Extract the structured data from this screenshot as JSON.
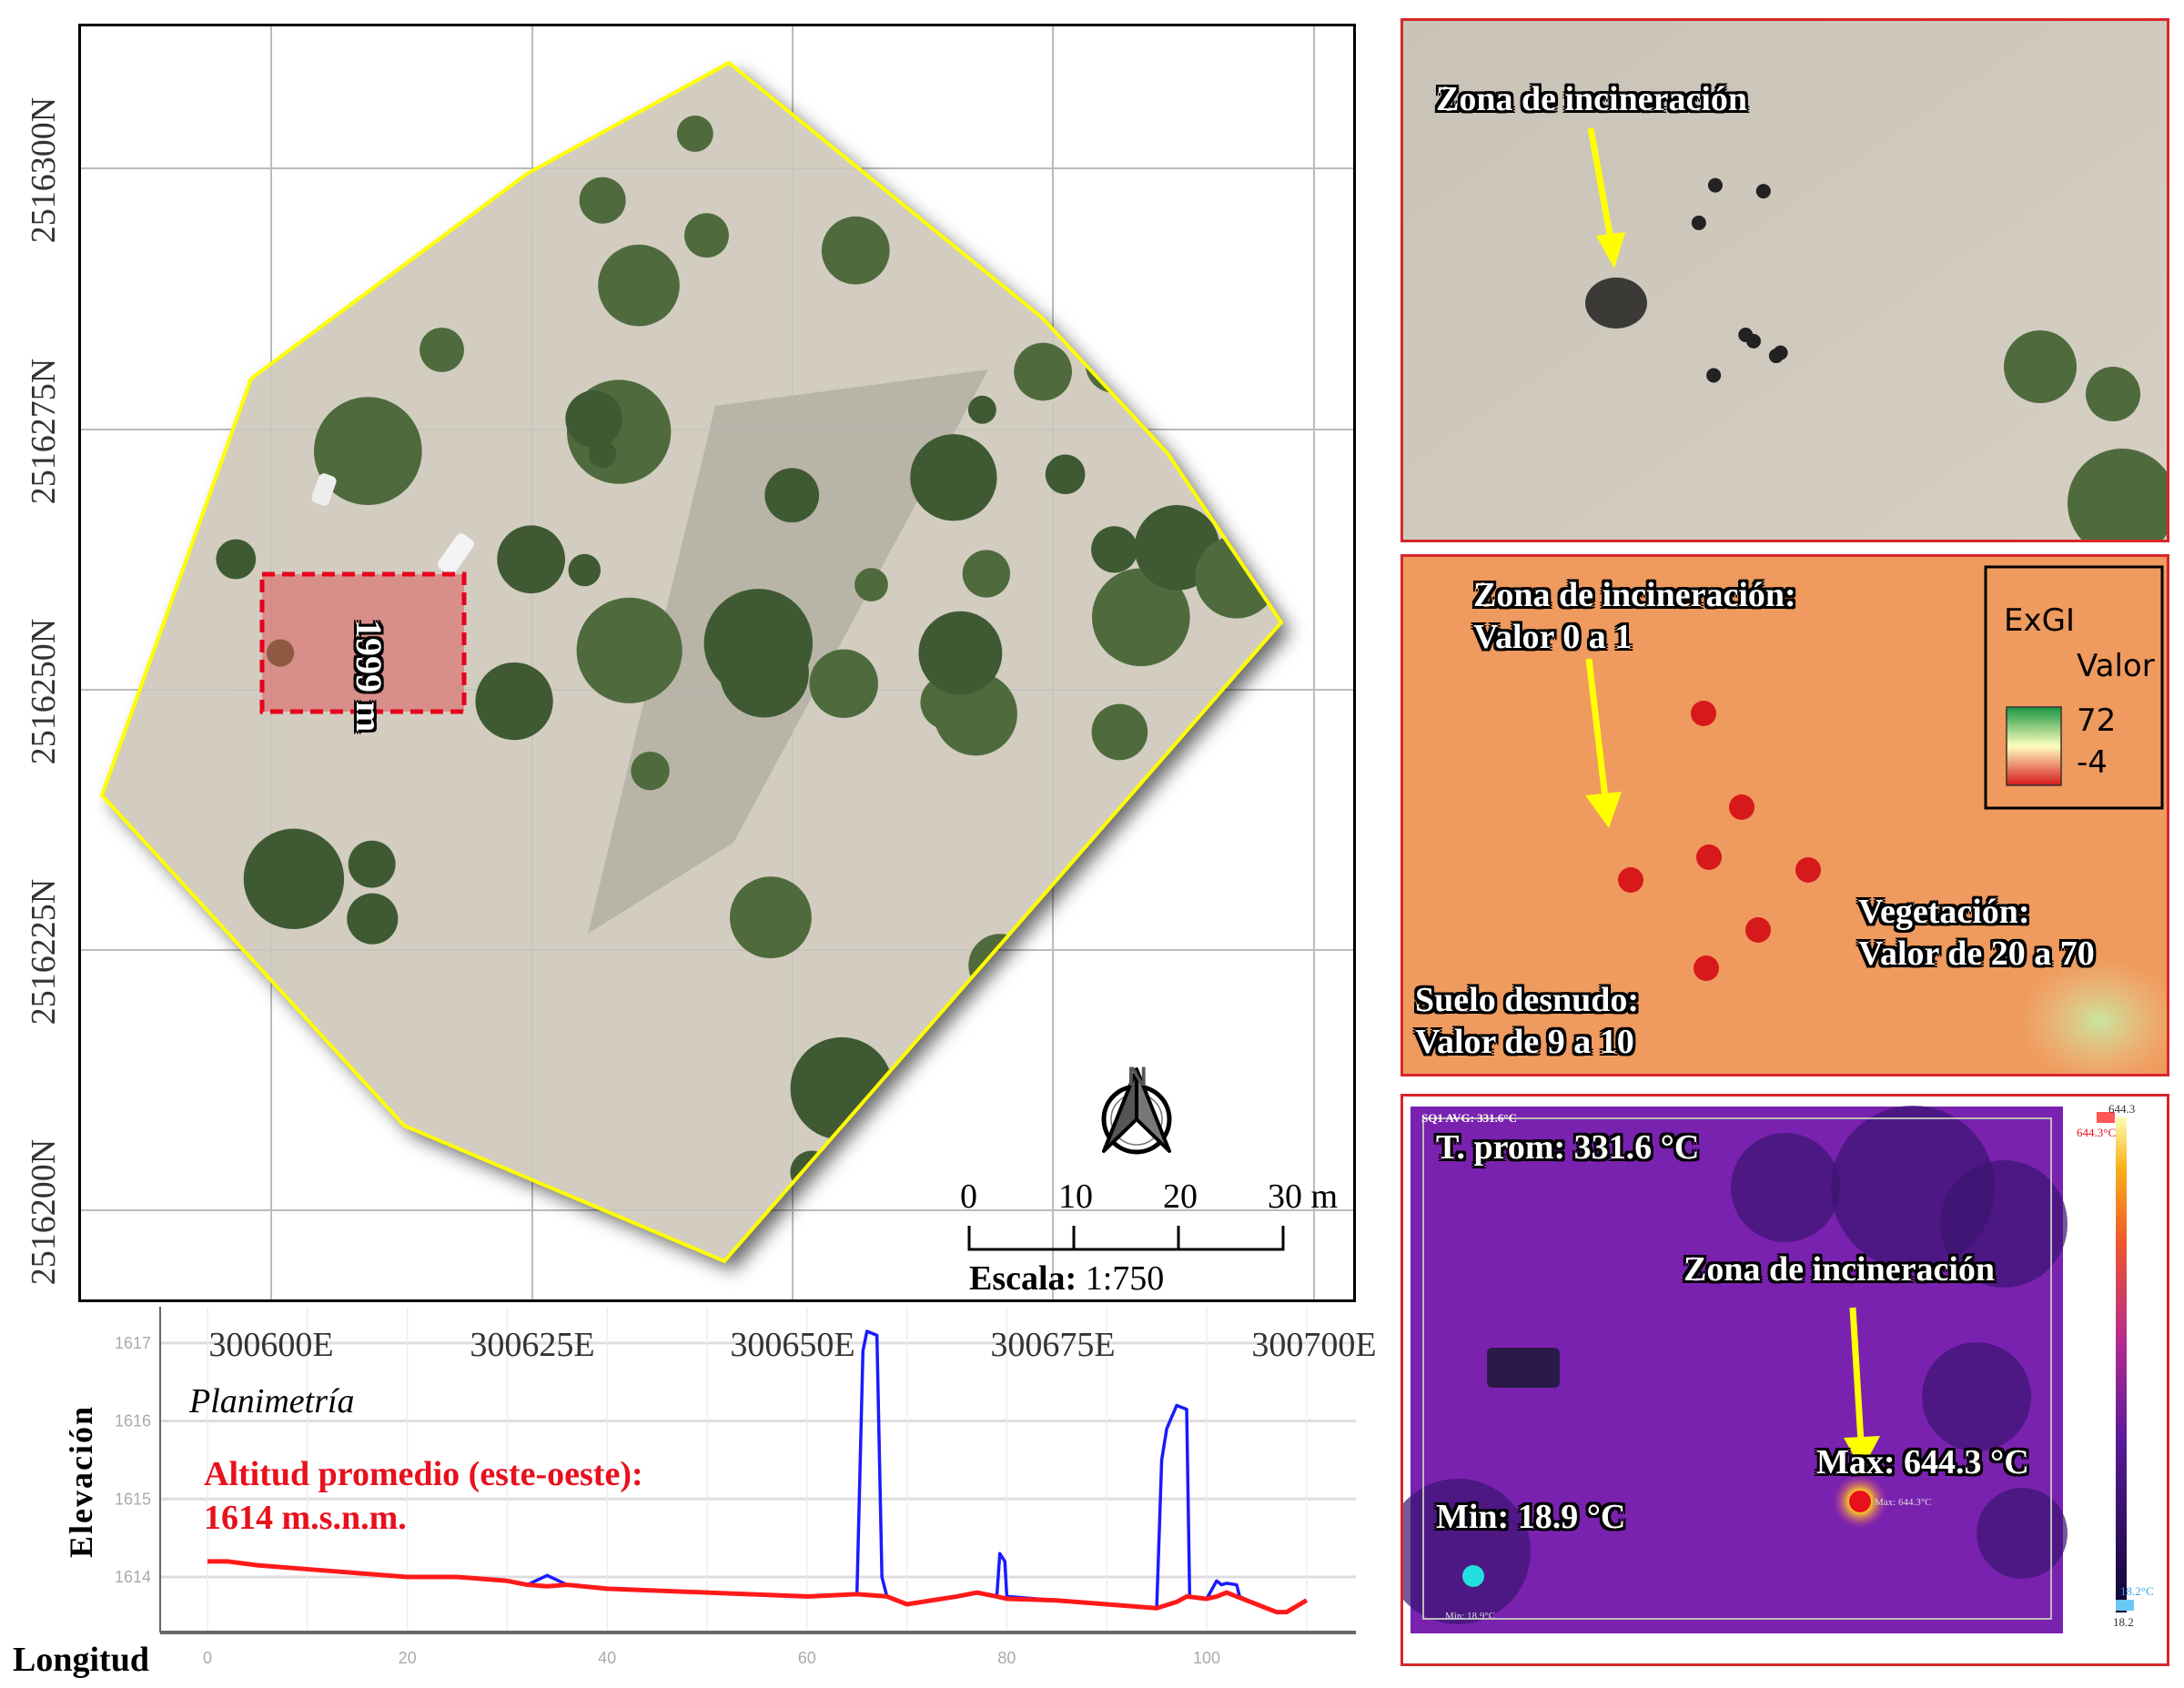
{
  "map": {
    "northing_labels": [
      "2516300N",
      "2516275N",
      "2516250N",
      "2516225N",
      "2516200N"
    ],
    "easting_labels": [
      "300600E",
      "300625E",
      "300650E",
      "300675E",
      "300700E"
    ],
    "boundary_color": "#ffff00",
    "selection_label": "1999 m",
    "north_label": "N",
    "scale": {
      "ticks": [
        "0",
        "10",
        "20",
        "30 m"
      ],
      "label": "Escala:",
      "value": "1:750"
    }
  },
  "panel_rgb": {
    "annotation": "Zona de incineración"
  },
  "panel_exgi": {
    "burn_title": "Zona de incineración:",
    "burn_value": "Valor 0 a 1",
    "veg_title": "Vegetación:",
    "veg_value": "Valor de 20 a 70",
    "soil_title": "Suelo desnudo:",
    "soil_value": "Valor de 9 a 10",
    "legend": {
      "title": "ExGI",
      "subtitle": "Valor",
      "max": "72",
      "min": "-4"
    }
  },
  "panel_thermal": {
    "sq_avg": "SQ1 AVG: 331.6°C",
    "avg": "T. prom: 331.6 °C",
    "annotation": "Zona de incineración",
    "max": "Max: 644.3 °C",
    "max_small": "Max: 644.3°C",
    "min": "Min: 18.9 °C",
    "min_small": "Min: 18.9°C",
    "colorbar": {
      "top": "644.3",
      "top_marker": "644.3°C",
      "bottom_marker": "18.2°C",
      "bottom": "18.2"
    }
  },
  "elevation_chart": {
    "ylabel": "Elevación",
    "xlabel": "Longitud",
    "title": "Planimetría",
    "annotation_line1": "Altitud promedio (este-oeste):",
    "annotation_line2": "1614 m.s.n.m."
  },
  "chart_data": {
    "type": "line",
    "xlabel": "Longitud",
    "ylabel": "Elevación",
    "xlim": [
      -2,
      115
    ],
    "ylim": [
      1613.3,
      1617.47
    ],
    "x_ticks": [
      "0",
      "20",
      "40",
      "60",
      "80",
      "100"
    ],
    "y_ticks": [
      "1614",
      "1615",
      "1616",
      "1617"
    ],
    "grid": true,
    "series": [
      {
        "color": "#1a1aff",
        "x": [
          0,
          2,
          5,
          10,
          15,
          20,
          25,
          30,
          32,
          34,
          36,
          40,
          50,
          60,
          65,
          65.6,
          66,
          67,
          67.5,
          68,
          70,
          75,
          77,
          79,
          79.3,
          79.8,
          80,
          85,
          90,
          95,
          95.5,
          96,
          97,
          98,
          98.3,
          100,
          101,
          101.5,
          102,
          103,
          103.3,
          105,
          106,
          107,
          108,
          110
        ],
        "y": [
          1614.2,
          1614.2,
          1614.15,
          1614.1,
          1614.05,
          1614.0,
          1614.0,
          1613.95,
          1613.9,
          1614.02,
          1613.9,
          1613.85,
          1613.8,
          1613.75,
          1613.78,
          1616.9,
          1617.15,
          1617.1,
          1614.0,
          1613.75,
          1613.65,
          1613.75,
          1613.8,
          1613.75,
          1614.3,
          1614.2,
          1613.75,
          1613.7,
          1613.65,
          1613.6,
          1615.5,
          1615.9,
          1616.2,
          1616.15,
          1613.75,
          1613.72,
          1613.95,
          1613.9,
          1613.92,
          1613.9,
          1613.75,
          1613.65,
          1613.6,
          1613.55,
          1613.55,
          1613.7
        ]
      },
      {
        "color": "#ff1a1a",
        "x": [
          0,
          2,
          5,
          10,
          15,
          20,
          25,
          30,
          32,
          34,
          36,
          40,
          50,
          60,
          65,
          68,
          70,
          75,
          77,
          79,
          80,
          85,
          90,
          95,
          97,
          98,
          100,
          101,
          102,
          103,
          105,
          106,
          107,
          108,
          110
        ],
        "y": [
          1614.2,
          1614.2,
          1614.15,
          1614.1,
          1614.05,
          1614.0,
          1614.0,
          1613.95,
          1613.9,
          1613.88,
          1613.9,
          1613.85,
          1613.8,
          1613.75,
          1613.78,
          1613.75,
          1613.65,
          1613.75,
          1613.8,
          1613.75,
          1613.72,
          1613.7,
          1613.65,
          1613.6,
          1613.68,
          1613.75,
          1613.72,
          1613.75,
          1613.8,
          1613.75,
          1613.65,
          1613.6,
          1613.55,
          1613.55,
          1613.7
        ]
      }
    ]
  }
}
